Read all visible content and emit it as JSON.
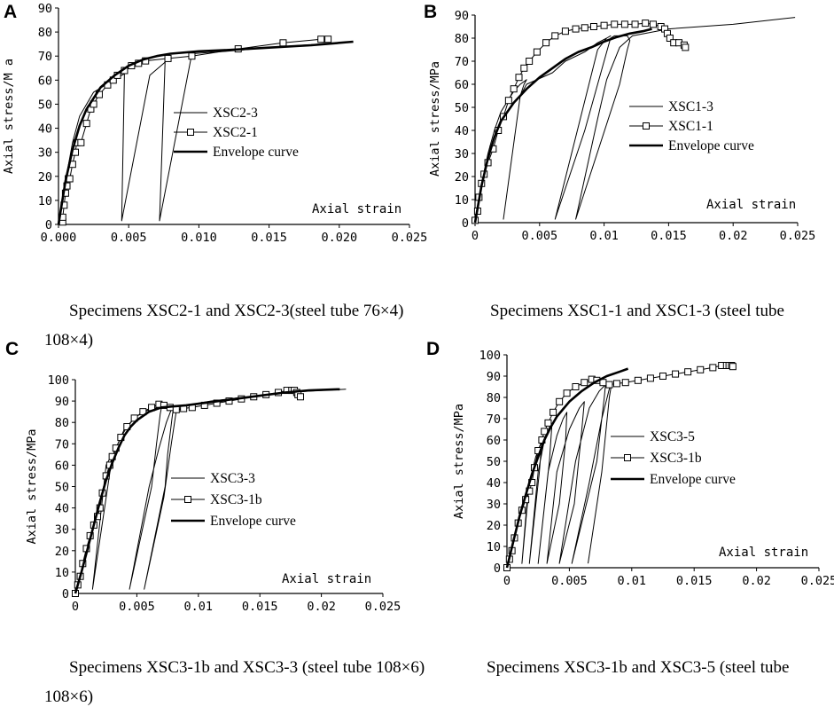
{
  "figure": {
    "captions": {
      "A_line1": "Specimens XSC2-1 and XSC2-3(steel tube 76×4)",
      "A_line2": "108×4)",
      "B_line1": "Specimens XSC1-1 and XSC1-3 (steel tube",
      "C_line1": "Specimens XSC3-1b and XSC3-3 (steel tube 108×6)",
      "C_line2": "108×6)",
      "D_line1": "Specimens XSC3-1b and XSC3-5 (steel tube"
    }
  },
  "chart_data": [
    {
      "id": "A",
      "type": "line",
      "panel_label": "A",
      "xlabel": "Axial strain",
      "ylabel": "Axial stress/M a",
      "xlim": [
        0,
        0.025
      ],
      "ylim": [
        0,
        90
      ],
      "xticks": [
        0,
        0.005,
        0.01,
        0.015,
        0.02,
        0.025
      ],
      "xtick_labels": [
        "0.000",
        "0.005",
        "0.010",
        "0.015",
        "0.020",
        "0.025"
      ],
      "yticks": [
        0,
        10,
        20,
        30,
        40,
        50,
        60,
        70,
        80,
        90
      ],
      "ytick_labels": [
        "0",
        "10",
        "20",
        "30",
        "40",
        "50",
        "60",
        "70",
        "80",
        "90"
      ],
      "legend": [
        "XSC2-3",
        "XSC2-1",
        "Envelope curve"
      ],
      "series": [
        {
          "name": "XSC2-3",
          "style": "thin",
          "x": [
            0,
            0.0005,
            0.001,
            0.0015,
            0.0025,
            0.0045,
            0.0048,
            0.0047,
            0.0045,
            0.0065,
            0.0075,
            0.0078,
            0.0076,
            0.0072,
            0.0095,
            0.012,
            0.016,
            0.02
          ],
          "y": [
            0,
            18,
            34,
            45,
            55,
            62,
            63,
            63,
            1.5,
            62,
            67,
            69,
            69,
            1.5,
            71,
            72,
            74,
            75.5
          ]
        },
        {
          "name": "XSC2-1",
          "style": "square",
          "x": [
            0.0003,
            0.0003,
            0.0004,
            0.0005,
            0.0006,
            0.0007,
            0.0008,
            0.001,
            0.0012,
            0.0013,
            0.0016,
            0.002,
            0.0023,
            0.0025,
            0.0029,
            0.0035,
            0.0039,
            0.0042,
            0.0047,
            0.0052,
            0.0057,
            0.0062,
            0.0078,
            0.0095,
            0.0128,
            0.016,
            0.0187,
            0.0192
          ],
          "y": [
            1,
            3,
            8,
            13,
            16,
            19,
            19,
            25,
            30,
            34,
            34,
            42,
            48,
            50,
            54,
            58,
            60,
            62,
            64,
            66,
            67,
            68,
            69,
            70,
            73,
            75.5,
            77,
            77
          ]
        },
        {
          "name": "Envelope curve",
          "style": "thick",
          "x": [
            0,
            0.0005,
            0.001,
            0.0015,
            0.002,
            0.003,
            0.004,
            0.005,
            0.006,
            0.007,
            0.008,
            0.01,
            0.012,
            0.015,
            0.018,
            0.021
          ],
          "y": [
            0,
            18,
            31,
            41,
            48,
            57,
            62,
            66,
            68.5,
            70,
            71,
            72,
            72.5,
            73.5,
            74.5,
            76
          ]
        }
      ]
    },
    {
      "id": "B",
      "type": "line",
      "panel_label": "B",
      "xlabel": "Axial strain",
      "ylabel": "Axial stress/MPa",
      "xlim": [
        0,
        0.025
      ],
      "ylim": [
        0,
        90
      ],
      "xticks": [
        0,
        0.005,
        0.01,
        0.015,
        0.02,
        0.025
      ],
      "xtick_labels": [
        "0",
        "0.005",
        "0.01",
        "0.015",
        "0.02",
        "0.025"
      ],
      "yticks": [
        0,
        10,
        20,
        30,
        40,
        50,
        60,
        70,
        80,
        90
      ],
      "ytick_labels": [
        "0",
        "10",
        "20",
        "30",
        "40",
        "50",
        "60",
        "70",
        "80",
        "90"
      ],
      "legend": [
        "XSC1-3",
        "XSC1-1",
        "Envelope curve"
      ],
      "series": [
        {
          "name": "XSC1-3",
          "style": "thin",
          "x": [
            0,
            0.0005,
            0.001,
            0.0015,
            0.002,
            0.003,
            0.0035,
            0.004,
            0.0038,
            0.0035,
            0.0022,
            0.0035,
            0.004,
            0.006,
            0.007,
            0.0085,
            0.0095,
            0.0102,
            0.0105,
            0.0102,
            0.0095,
            0.0062,
            0.0085,
            0.0095,
            0.0102,
            0.0105,
            0.0108,
            0.0118,
            0.012,
            0.0118,
            0.0112,
            0.0078,
            0.0095,
            0.0102,
            0.0112,
            0.0122,
            0.015,
            0.02,
            0.0248
          ],
          "y": [
            0,
            17,
            30,
            40,
            48,
            57,
            60,
            62,
            60,
            55,
            1.5,
            55,
            60,
            65,
            70,
            74,
            78,
            80,
            81,
            80,
            75,
            1.5,
            40,
            60,
            74,
            80,
            81,
            81,
            79,
            75,
            60,
            1.5,
            45,
            62,
            76,
            81,
            84,
            86,
            89
          ]
        },
        {
          "name": "XSC1-1",
          "style": "square",
          "x": [
            0,
            0.0002,
            0.0003,
            0.0005,
            0.0007,
            0.001,
            0.0014,
            0.0018,
            0.0022,
            0.0026,
            0.003,
            0.0034,
            0.0038,
            0.0042,
            0.0048,
            0.0055,
            0.0062,
            0.007,
            0.0078,
            0.0085,
            0.0092,
            0.01,
            0.0108,
            0.0116,
            0.0124,
            0.0132,
            0.0138,
            0.0144,
            0.0147,
            0.0149,
            0.0151,
            0.0154,
            0.0158,
            0.0162,
            0.0163
          ],
          "y": [
            1,
            5,
            11,
            17,
            21,
            26,
            32,
            40,
            46,
            53,
            58,
            63,
            67,
            70,
            74,
            78,
            81,
            83,
            84,
            84.5,
            85,
            85.5,
            86,
            86,
            86,
            86.5,
            86,
            85,
            84,
            82,
            80,
            78,
            78,
            77,
            76
          ]
        },
        {
          "name": "Envelope curve",
          "style": "thick",
          "x": [
            0,
            0.0005,
            0.001,
            0.0015,
            0.002,
            0.003,
            0.004,
            0.005,
            0.006,
            0.007,
            0.008,
            0.009,
            0.01,
            0.011,
            0.012,
            0.013,
            0.0137
          ],
          "y": [
            0,
            16,
            28,
            37,
            44,
            52,
            58,
            63,
            67,
            71,
            74,
            76,
            78.5,
            80.5,
            82,
            83,
            84
          ]
        }
      ]
    },
    {
      "id": "C",
      "type": "line",
      "panel_label": "C",
      "xlabel": "Axial strain",
      "ylabel": "Axial stress/MPa",
      "xlim": [
        0,
        0.025
      ],
      "ylim": [
        0,
        100
      ],
      "xticks": [
        0,
        0.005,
        0.01,
        0.015,
        0.02,
        0.025
      ],
      "xtick_labels": [
        "0",
        "0.005",
        "0.01",
        "0.015",
        "0.02",
        "0.025"
      ],
      "yticks": [
        0,
        10,
        20,
        30,
        40,
        50,
        60,
        70,
        80,
        90,
        100
      ],
      "ytick_labels": [
        "0",
        "10",
        "20",
        "30",
        "40",
        "50",
        "60",
        "70",
        "80",
        "90",
        "100"
      ],
      "legend": [
        "XSC3-3",
        "XSC3-1b",
        "Envelope curve"
      ],
      "series": [
        {
          "name": "XSC3-3",
          "style": "thin",
          "x": [
            0,
            0.0005,
            0.001,
            0.0015,
            0.002,
            0.0025,
            0.003,
            0.0032,
            0.003,
            0.0025,
            0.0014,
            0.003,
            0.004,
            0.005,
            0.006,
            0.0068,
            0.007,
            0.0069,
            0.0066,
            0.0062,
            0.0044,
            0.006,
            0.0068,
            0.0074,
            0.0078,
            0.008,
            0.0079,
            0.0075,
            0.0073,
            0.0056,
            0.0072,
            0.0078,
            0.0082,
            0.009,
            0.011,
            0.014,
            0.017,
            0.02,
            0.022
          ],
          "y": [
            0,
            10,
            21,
            32,
            43,
            55,
            63,
            66,
            65,
            60,
            2,
            64,
            77,
            83,
            86,
            87,
            87,
            84,
            70,
            50,
            2,
            50,
            68,
            80,
            86,
            87,
            84,
            65,
            50,
            2,
            45,
            70,
            85,
            88,
            90,
            92,
            94,
            95,
            95.5
          ]
        },
        {
          "name": "XSC3-1b",
          "style": "square",
          "x": [
            0,
            0.0002,
            0.0004,
            0.0006,
            0.0009,
            0.0012,
            0.0015,
            0.0018,
            0.002,
            0.0022,
            0.0025,
            0.0028,
            0.003,
            0.0033,
            0.0037,
            0.0042,
            0.0048,
            0.0055,
            0.0062,
            0.0068,
            0.0072,
            0.0077,
            0.0082,
            0.0088,
            0.0095,
            0.0105,
            0.0115,
            0.0125,
            0.0135,
            0.0145,
            0.0155,
            0.0165,
            0.0172,
            0.0176,
            0.0178,
            0.018,
            0.0181,
            0.0183
          ],
          "y": [
            0,
            4,
            8,
            14,
            21,
            27,
            32,
            36,
            40,
            47,
            55,
            60,
            64,
            68,
            73,
            78,
            82,
            85,
            87,
            88.5,
            88,
            87,
            86,
            86.5,
            87,
            88,
            89,
            90,
            91,
            92,
            93,
            94,
            95,
            95,
            95,
            94,
            93,
            92
          ]
        },
        {
          "name": "Envelope curve",
          "style": "thick",
          "x": [
            0,
            0.0005,
            0.001,
            0.0015,
            0.002,
            0.0025,
            0.003,
            0.0035,
            0.004,
            0.0045,
            0.005,
            0.006,
            0.007,
            0.008,
            0.009,
            0.011,
            0.013,
            0.015,
            0.017,
            0.019,
            0.0215
          ],
          "y": [
            0,
            10,
            21,
            32,
            43,
            53,
            61,
            68,
            74,
            78,
            81,
            85,
            87,
            87.5,
            88,
            89.5,
            91,
            92.5,
            94,
            95,
            95.5
          ]
        }
      ]
    },
    {
      "id": "D",
      "type": "line",
      "panel_label": "D",
      "xlabel": "Axial strain",
      "ylabel": "Axial stress/MPa",
      "xlim": [
        0,
        0.025
      ],
      "ylim": [
        0,
        100
      ],
      "xticks": [
        0,
        0.005,
        0.01,
        0.015,
        0.02,
        0.025
      ],
      "xtick_labels": [
        "0",
        "0.005",
        "0.01",
        "0.015",
        "0.02",
        "0.025"
      ],
      "yticks": [
        0,
        10,
        20,
        30,
        40,
        50,
        60,
        70,
        80,
        90,
        100
      ],
      "ytick_labels": [
        "0",
        "10",
        "20",
        "30",
        "40",
        "50",
        "60",
        "70",
        "80",
        "90",
        "100"
      ],
      "legend": [
        "XSC3-5",
        "XSC3-1b",
        "Envelope curve"
      ],
      "series": [
        {
          "name": "XSC3-5",
          "style": "thin",
          "x": [
            0,
            0.0005,
            0.001,
            0.0015,
            0.0017,
            0.0016,
            0.0012,
            0.0018,
            0.0023,
            0.0027,
            0.0028,
            0.0026,
            0.0018,
            0.0025,
            0.003,
            0.0034,
            0.0036,
            0.0034,
            0.0025,
            0.0033,
            0.004,
            0.0045,
            0.0048,
            0.0047,
            0.0042,
            0.0032,
            0.004,
            0.005,
            0.0058,
            0.0062,
            0.006,
            0.0054,
            0.0042,
            0.0055,
            0.0066,
            0.0074,
            0.0079,
            0.0078,
            0.0072,
            0.0052,
            0.0066,
            0.0076,
            0.0082,
            0.0084,
            0.0082,
            0.0076,
            0.0065
          ],
          "y": [
            0,
            12,
            25,
            35,
            38,
            30,
            2,
            40,
            52,
            58,
            60,
            45,
            2,
            45,
            60,
            66,
            67,
            50,
            2,
            45,
            62,
            70,
            73,
            60,
            30,
            2,
            45,
            65,
            75,
            78,
            65,
            30,
            2,
            50,
            75,
            83,
            86,
            80,
            50,
            2,
            40,
            70,
            84,
            87,
            80,
            45,
            2
          ]
        },
        {
          "name": "XSC3-1b",
          "style": "square",
          "x": [
            0,
            0.0002,
            0.0004,
            0.0006,
            0.0009,
            0.0012,
            0.0015,
            0.0018,
            0.002,
            0.0022,
            0.0025,
            0.0028,
            0.003,
            0.0033,
            0.0037,
            0.0042,
            0.0048,
            0.0055,
            0.0062,
            0.0068,
            0.0072,
            0.0077,
            0.0082,
            0.0088,
            0.0095,
            0.0105,
            0.0115,
            0.0125,
            0.0135,
            0.0145,
            0.0155,
            0.0165,
            0.0172,
            0.0176,
            0.0178,
            0.018,
            0.0181
          ],
          "y": [
            0,
            4,
            8,
            14,
            21,
            27,
            32,
            36,
            40,
            47,
            55,
            60,
            64,
            68,
            73,
            78,
            82,
            85,
            87,
            88.5,
            88,
            87,
            86,
            86.5,
            87,
            88,
            89,
            90,
            91,
            92,
            93,
            94,
            95,
            95,
            95,
            95,
            94.5
          ]
        },
        {
          "name": "Envelope curve",
          "style": "thick",
          "x": [
            0,
            0.0005,
            0.001,
            0.0015,
            0.002,
            0.0025,
            0.003,
            0.0035,
            0.004,
            0.005,
            0.006,
            0.007,
            0.008,
            0.009,
            0.0097
          ],
          "y": [
            0,
            12,
            24,
            34,
            44,
            52,
            60,
            66,
            71,
            78,
            83,
            87,
            90,
            92,
            93.5
          ]
        }
      ]
    }
  ]
}
